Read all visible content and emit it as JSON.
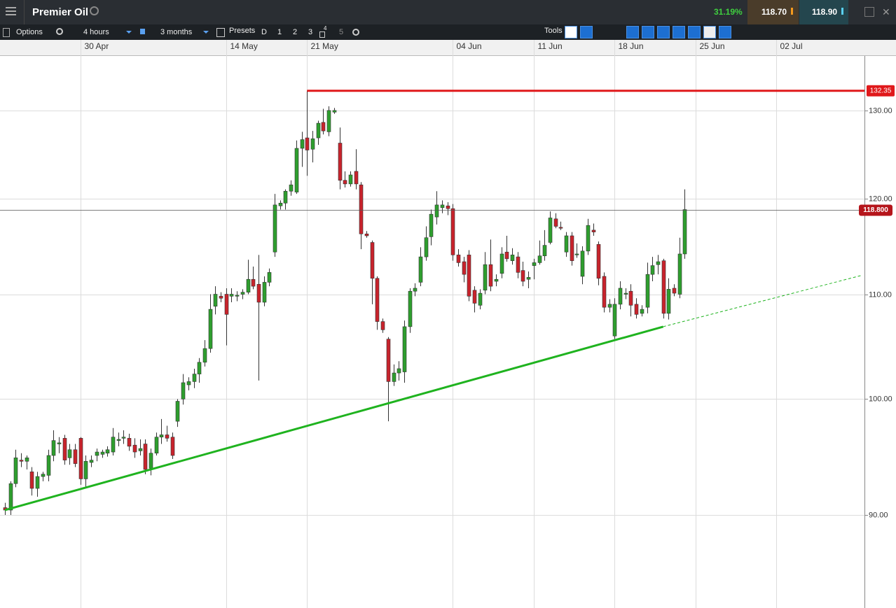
{
  "header": {
    "title": "Premier Oil",
    "change": "31.19%",
    "sell": "118.70",
    "buy": "118.90"
  },
  "toolbar": {
    "options": "Options",
    "interval": "4 hours",
    "range": "3 months",
    "presets": "Presets",
    "preset_buttons": [
      "D",
      "1",
      "2",
      "3",
      "4",
      "5"
    ],
    "tools": "Tools"
  },
  "chart_data": {
    "type": "candlestick",
    "log_scale": true,
    "grid": true,
    "up_color": "#2e9e2e",
    "down_color": "#c8232c",
    "xlim": [
      -0.9,
      159.3
    ],
    "xticks": [
      {
        "value": 14,
        "label": "30 Apr"
      },
      {
        "value": 41,
        "label": "14 May"
      },
      {
        "value": 56,
        "label": "21 May"
      },
      {
        "value": 83,
        "label": "04 Jun"
      },
      {
        "value": 98,
        "label": "11 Jun"
      },
      {
        "value": 113,
        "label": "18 Jun"
      },
      {
        "value": 128,
        "label": "25 Jun"
      },
      {
        "value": 143,
        "label": "02 Jul"
      }
    ],
    "ylim": [
      82.7,
      136.6
    ],
    "yticks": [
      {
        "value": 90,
        "label": "90.00"
      },
      {
        "value": 100,
        "label": "100.00"
      },
      {
        "value": 110,
        "label": "110.00"
      },
      {
        "value": 120,
        "label": "120.00"
      },
      {
        "value": 130,
        "label": "130.00"
      }
    ],
    "hline": {
      "value": 132.35,
      "x_start": 56,
      "color": "#e0191b"
    },
    "last_price": {
      "value": 118.8,
      "label": "118.800",
      "color": "#b5151b"
    },
    "trendline": {
      "x": [
        0,
        122
      ],
      "y": [
        90.4,
        106.8
      ],
      "color": "#1fb31f"
    },
    "trendline_extension": {
      "x": [
        122,
        158.8
      ],
      "y": [
        106.8,
        111.9
      ]
    },
    "candles": [
      [
        90.6,
        91.0,
        90.0,
        90.4
      ],
      [
        90.4,
        92.8,
        90.0,
        92.6
      ],
      [
        92.6,
        95.5,
        92.3,
        94.8
      ],
      [
        94.6,
        95.2,
        94.0,
        94.5
      ],
      [
        94.5,
        95.0,
        93.8,
        94.8
      ],
      [
        93.6,
        94.0,
        91.6,
        92.2
      ],
      [
        92.2,
        93.6,
        91.5,
        93.2
      ],
      [
        93.2,
        93.6,
        92.8,
        93.4
      ],
      [
        93.3,
        95.5,
        92.8,
        95.0
      ],
      [
        95.0,
        97.2,
        94.5,
        96.3
      ],
      [
        96.0,
        96.6,
        95.2,
        96.1
      ],
      [
        96.5,
        96.8,
        94.2,
        94.6
      ],
      [
        94.8,
        96.0,
        94.2,
        95.5
      ],
      [
        95.5,
        96.0,
        94.0,
        94.3
      ],
      [
        96.5,
        96.6,
        92.5,
        93.0
      ],
      [
        93.0,
        95.0,
        92.3,
        94.5
      ],
      [
        94.4,
        95.0,
        94.0,
        94.6
      ],
      [
        95.0,
        95.6,
        94.5,
        95.3
      ],
      [
        95.1,
        95.5,
        94.8,
        95.3
      ],
      [
        95.2,
        95.8,
        94.9,
        95.5
      ],
      [
        95.3,
        97.4,
        95.0,
        96.6
      ],
      [
        96.3,
        97.0,
        95.8,
        96.4
      ],
      [
        96.5,
        97.2,
        96.0,
        96.6
      ],
      [
        96.5,
        96.9,
        95.4,
        95.8
      ],
      [
        95.9,
        96.5,
        94.8,
        95.3
      ],
      [
        95.4,
        96.4,
        95.0,
        95.6
      ],
      [
        96.0,
        96.4,
        93.4,
        93.8
      ],
      [
        93.9,
        95.6,
        93.3,
        95.2
      ],
      [
        95.2,
        97.0,
        95.0,
        96.6
      ],
      [
        96.6,
        98.2,
        96.0,
        96.8
      ],
      [
        96.8,
        97.6,
        96.2,
        96.5
      ],
      [
        96.6,
        97.0,
        94.7,
        95.0
      ],
      [
        98.0,
        100.0,
        97.5,
        99.8
      ],
      [
        100.0,
        102.3,
        99.5,
        101.5
      ],
      [
        101.3,
        102.0,
        100.8,
        101.6
      ],
      [
        101.6,
        102.8,
        101.0,
        102.3
      ],
      [
        102.3,
        103.8,
        101.5,
        103.4
      ],
      [
        103.4,
        105.5,
        103.0,
        104.7
      ],
      [
        104.7,
        110.0,
        104.3,
        108.5
      ],
      [
        108.8,
        110.8,
        108.0,
        110.0
      ],
      [
        109.8,
        110.2,
        109.2,
        109.6
      ],
      [
        110.0,
        110.6,
        105.0,
        108.0
      ],
      [
        109.8,
        110.6,
        109.2,
        110.0
      ],
      [
        109.8,
        110.3,
        109.3,
        109.9
      ],
      [
        110.0,
        110.5,
        109.5,
        110.2
      ],
      [
        110.2,
        113.5,
        110.0,
        111.5
      ],
      [
        111.5,
        112.8,
        110.5,
        110.8
      ],
      [
        111.0,
        114.0,
        101.7,
        109.2
      ],
      [
        109.2,
        111.8,
        108.8,
        111.2
      ],
      [
        111.2,
        112.6,
        110.8,
        112.2
      ],
      [
        114.3,
        120.5,
        113.8,
        119.3
      ],
      [
        119.2,
        119.8,
        118.8,
        119.5
      ],
      [
        119.5,
        121.0,
        118.8,
        120.8
      ],
      [
        120.8,
        122.0,
        120.3,
        121.5
      ],
      [
        120.7,
        126.5,
        120.5,
        125.6
      ],
      [
        125.6,
        127.5,
        123.5,
        126.6
      ],
      [
        126.8,
        132.35,
        122.5,
        125.4
      ],
      [
        125.5,
        127.6,
        124.0,
        126.7
      ],
      [
        126.8,
        128.8,
        126.0,
        128.5
      ],
      [
        128.6,
        130.2,
        127.2,
        127.6
      ],
      [
        127.5,
        130.5,
        127.0,
        130.0
      ],
      [
        129.8,
        130.3,
        129.6,
        130.0
      ],
      [
        126.2,
        128.0,
        121.0,
        122.0
      ],
      [
        122.0,
        123.0,
        121.2,
        121.6
      ],
      [
        121.6,
        123.0,
        121.3,
        122.6
      ],
      [
        123.0,
        125.5,
        121.0,
        121.6
      ],
      [
        121.5,
        121.8,
        114.6,
        116.2
      ],
      [
        116.2,
        116.5,
        115.8,
        116.0
      ],
      [
        115.3,
        115.5,
        109.0,
        111.6
      ],
      [
        111.6,
        111.8,
        106.5,
        107.3
      ],
      [
        107.3,
        107.6,
        106.2,
        106.5
      ],
      [
        105.6,
        105.8,
        98.0,
        101.6
      ],
      [
        101.6,
        103.2,
        101.2,
        102.4
      ],
      [
        102.4,
        103.5,
        101.7,
        102.8
      ],
      [
        102.5,
        107.4,
        101.5,
        106.8
      ],
      [
        106.8,
        110.6,
        106.2,
        110.3
      ],
      [
        110.3,
        111.1,
        109.8,
        110.6
      ],
      [
        111.2,
        114.8,
        110.8,
        113.8
      ],
      [
        113.8,
        117.0,
        113.4,
        115.8
      ],
      [
        115.9,
        118.8,
        115.0,
        118.3
      ],
      [
        118.0,
        120.8,
        117.2,
        119.3
      ],
      [
        119.0,
        119.8,
        118.4,
        119.3
      ],
      [
        119.2,
        119.6,
        118.2,
        118.9
      ],
      [
        118.9,
        119.4,
        113.4,
        114.0
      ],
      [
        114.0,
        114.6,
        112.8,
        113.2
      ],
      [
        113.3,
        113.8,
        111.2,
        112.0
      ],
      [
        114.0,
        114.5,
        109.3,
        109.8
      ],
      [
        110.4,
        110.8,
        108.2,
        109.1
      ],
      [
        108.9,
        110.5,
        108.5,
        110.1
      ],
      [
        110.4,
        114.3,
        110.0,
        113.0
      ],
      [
        113.0,
        115.6,
        110.3,
        110.8
      ],
      [
        111.3,
        112.0,
        110.8,
        111.5
      ],
      [
        112.1,
        114.8,
        111.6,
        114.1
      ],
      [
        114.3,
        116.0,
        113.3,
        113.6
      ],
      [
        113.4,
        114.7,
        113.0,
        114.0
      ],
      [
        113.8,
        114.3,
        111.6,
        112.2
      ],
      [
        112.4,
        113.3,
        110.8,
        111.3
      ],
      [
        111.5,
        112.3,
        110.6,
        111.7
      ],
      [
        112.9,
        113.6,
        111.5,
        113.2
      ],
      [
        113.2,
        115.5,
        113.0,
        113.9
      ],
      [
        113.9,
        116.6,
        113.4,
        115.0
      ],
      [
        115.3,
        118.6,
        115.1,
        117.9
      ],
      [
        117.8,
        118.4,
        116.8,
        117.0
      ],
      [
        116.9,
        117.5,
        116.6,
        116.8
      ],
      [
        114.3,
        116.4,
        113.8,
        116.0
      ],
      [
        116.0,
        116.4,
        112.9,
        113.4
      ],
      [
        114.0,
        115.2,
        113.7,
        114.1
      ],
      [
        111.8,
        114.9,
        111.0,
        114.4
      ],
      [
        114.4,
        117.8,
        114.0,
        117.1
      ],
      [
        116.6,
        117.3,
        116.0,
        116.4
      ],
      [
        115.1,
        115.4,
        110.9,
        111.6
      ],
      [
        111.8,
        112.2,
        108.2,
        108.7
      ],
      [
        108.7,
        109.5,
        108.2,
        109.0
      ],
      [
        105.9,
        109.6,
        105.6,
        109.0
      ],
      [
        109.0,
        111.3,
        108.5,
        110.6
      ],
      [
        110.0,
        110.6,
        109.5,
        110.1
      ],
      [
        110.3,
        111.0,
        107.8,
        108.9
      ],
      [
        109.0,
        109.6,
        107.6,
        108.0
      ],
      [
        108.1,
        108.9,
        107.8,
        108.5
      ],
      [
        108.7,
        113.2,
        108.1,
        112.0
      ],
      [
        112.0,
        113.8,
        111.3,
        112.9
      ],
      [
        113.0,
        114.0,
        112.0,
        113.3
      ],
      [
        113.4,
        113.6,
        107.6,
        108.1
      ],
      [
        108.1,
        111.6,
        107.5,
        110.5
      ],
      [
        110.6,
        111.0,
        109.8,
        110.1
      ],
      [
        110.0,
        115.8,
        109.6,
        114.1
      ],
      [
        114.1,
        121.0,
        113.6,
        118.8
      ]
    ]
  }
}
